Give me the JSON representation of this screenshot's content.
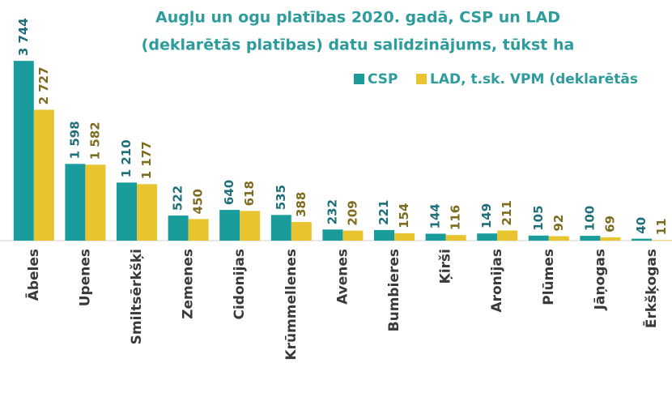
{
  "chart_data": {
    "type": "bar",
    "title": [
      "Augļu un ogu platības 2020. gadā, CSP un LAD",
      "(deklarētās platības) datu salīdzinājums, tūkst ha"
    ],
    "categories": [
      "Ābeles",
      "Upenes",
      "Smiltsērkšķi",
      "Zemenes",
      "Cidonijas",
      "Krūmmellenes",
      "Avenes",
      "Bumbieres",
      "Ķirši",
      "Aronijas",
      "Plūmes",
      "Jāņogas",
      "Ērkšķogas"
    ],
    "series": [
      {
        "name": "CSP",
        "color": "#1a9c9c",
        "label_color": "#1f6f7a",
        "values": [
          3744,
          1598,
          1210,
          522,
          640,
          535,
          232,
          221,
          144,
          149,
          105,
          100,
          40
        ],
        "value_labels": [
          "3 744",
          "1 598",
          "1 210",
          "522",
          "640",
          "535",
          "232",
          "221",
          "144",
          "149",
          "105",
          "100",
          "40"
        ]
      },
      {
        "name": "LAD, t.sk. VPM (deklarētās",
        "color": "#e8c431",
        "label_color": "#7d6b1e",
        "values": [
          2727,
          1582,
          1177,
          450,
          618,
          388,
          209,
          154,
          116,
          211,
          92,
          69,
          11
        ],
        "value_labels": [
          "2 727",
          "1 582",
          "1 177",
          "450",
          "618",
          "388",
          "209",
          "154",
          "116",
          "211",
          "92",
          "69",
          "11"
        ]
      }
    ],
    "ylim": [
      0,
      4000
    ]
  }
}
